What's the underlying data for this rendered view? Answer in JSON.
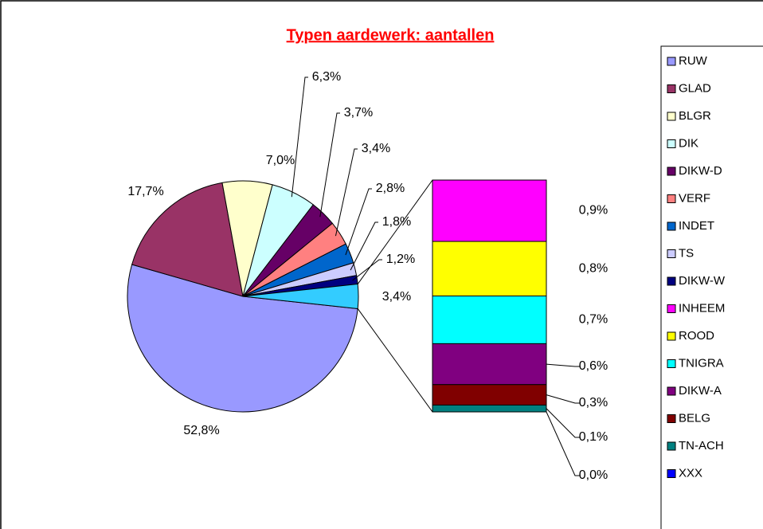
{
  "chart_data": {
    "type": "pie",
    "title": "Typen aardewerk: aantallen",
    "pie": {
      "categories": [
        "RUW",
        "GLAD",
        "BLGR",
        "DIK",
        "DIKW-D",
        "VERF",
        "INDET",
        "TS",
        "DIKW-W"
      ],
      "values": [
        52.8,
        17.7,
        7.0,
        6.3,
        3.7,
        3.4,
        2.8,
        1.8,
        1.2
      ],
      "value_labels": [
        "52,8%",
        "17,7%",
        "7,0%",
        "6,3%",
        "3,7%",
        "3,4%",
        "2,8%",
        "1,8%",
        "1,2%"
      ],
      "colors": [
        "#9999ff",
        "#993366",
        "#ffffcc",
        "#ccffff",
        "#660066",
        "#ff8080",
        "#0066cc",
        "#ccccff",
        "#000080"
      ]
    },
    "other": {
      "value": 3.4,
      "value_label": "3,4%",
      "color": "#33ccff"
    },
    "bar": {
      "categories": [
        "INHEEM",
        "ROOD",
        "TNIGRA",
        "DIKW-A",
        "BELG",
        "TN-ACH",
        "XXX"
      ],
      "values": [
        0.9,
        0.8,
        0.7,
        0.6,
        0.3,
        0.1,
        0.0
      ],
      "value_labels": [
        "0,9%",
        "0,8%",
        "0,7%",
        "0,6%",
        "0,3%",
        "0,1%",
        "0,0%"
      ],
      "colors": [
        "#ff00ff",
        "#ffff00",
        "#00ffff",
        "#800080",
        "#800000",
        "#008080",
        "#0000ff"
      ]
    },
    "legend": "right"
  }
}
